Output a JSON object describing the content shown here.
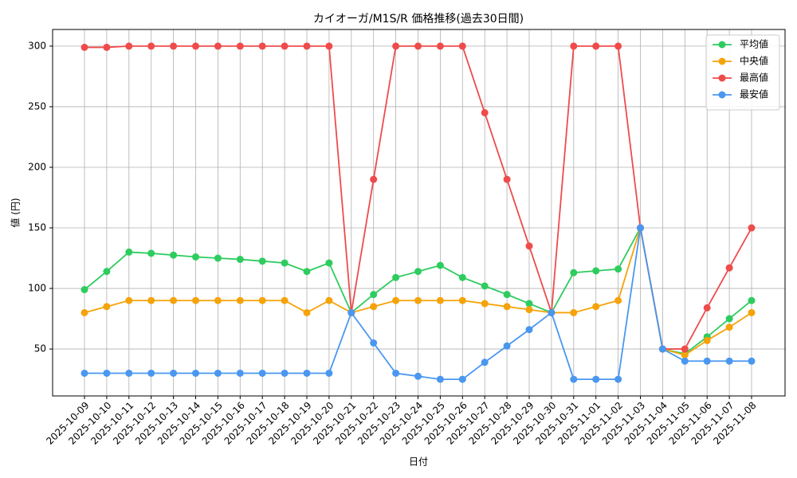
{
  "chart_data": {
    "type": "line",
    "title": "カイオーガ/M1S/R 価格推移(過去30日間)",
    "x_label": "日付",
    "y_label": "値 (円)",
    "categories": [
      "2025-10-09",
      "2025-10-10",
      "2025-10-11",
      "2025-10-12",
      "2025-10-13",
      "2025-10-14",
      "2025-10-15",
      "2025-10-16",
      "2025-10-17",
      "2025-10-18",
      "2025-10-19",
      "2025-10-20",
      "2025-10-21",
      "2025-10-22",
      "2025-10-23",
      "2025-10-24",
      "2025-10-25",
      "2025-10-26",
      "2025-10-27",
      "2025-10-28",
      "2025-10-29",
      "2025-10-30",
      "2025-10-31",
      "2025-11-01",
      "2025-11-02",
      "2025-11-03",
      "2025-11-04",
      "2025-11-05",
      "2025-11-06",
      "2025-11-07",
      "2025-11-08"
    ],
    "series": [
      {
        "name": "平均値",
        "color": "#2ecc5f",
        "values": [
          99,
          114,
          130,
          129,
          127.5,
          126,
          125,
          124,
          122.5,
          121,
          114,
          121,
          80,
          95,
          109,
          114,
          119,
          109,
          102,
          95,
          87.5,
          80,
          113,
          114.5,
          116,
          150,
          50,
          46,
          60,
          75,
          90
        ]
      },
      {
        "name": "中央値",
        "color": "#f5a30a",
        "values": [
          80,
          85,
          90,
          90,
          90,
          90,
          90,
          90,
          90,
          90,
          80,
          90,
          80,
          85,
          90,
          90,
          90,
          90,
          87.5,
          85,
          82.5,
          80,
          80,
          85,
          90,
          150,
          50,
          45,
          57,
          68,
          80
        ]
      },
      {
        "name": "最高値",
        "color": "#ef4b4b",
        "values": [
          299,
          299,
          300,
          300,
          300,
          300,
          300,
          300,
          300,
          300,
          300,
          300,
          80,
          190,
          300,
          300,
          300,
          300,
          245,
          190,
          135,
          80,
          300,
          300,
          300,
          150,
          50,
          50,
          84,
          117,
          150
        ]
      },
      {
        "name": "最安値",
        "color": "#4a97f0",
        "values": [
          30,
          30,
          30,
          30,
          30,
          30,
          30,
          30,
          30,
          30,
          30,
          30,
          80,
          55,
          30,
          27.5,
          25,
          25,
          39,
          52.5,
          66,
          80,
          25,
          25,
          25,
          150,
          50,
          40,
          40,
          40,
          40
        ]
      }
    ],
    "ylim": [
      11.25,
      313.75
    ],
    "yticks": [
      50,
      100,
      150,
      200,
      250,
      300
    ],
    "grid": true,
    "legend": "upper-right"
  }
}
